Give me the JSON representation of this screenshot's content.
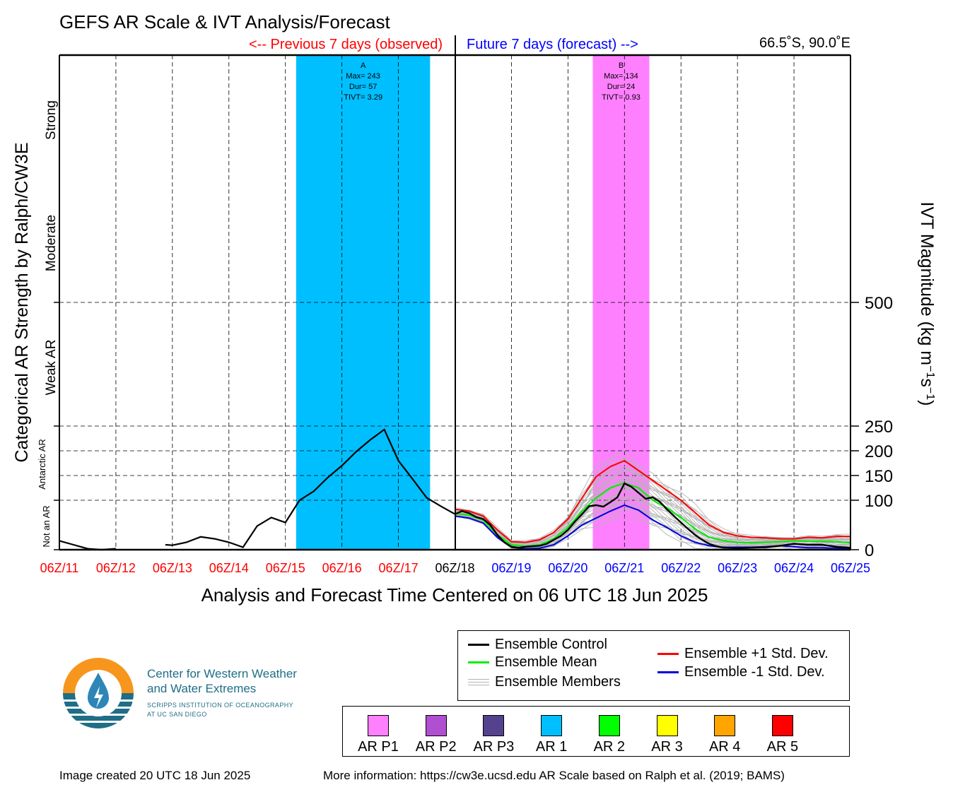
{
  "title": "GEFS AR Scale & IVT Analysis/Forecast",
  "past_label": "<-- Previous 7 days (observed)",
  "future_label": "Future 7 days (forecast) -->",
  "location": "66.5˚S, 90.0˚E",
  "y_left_label": "Categorical AR Strength by Ralph/CW3E",
  "categories_left": [
    "Not an AR",
    "Antarctic AR",
    "Weak AR",
    "Moderate",
    "Strong"
  ],
  "y_right_label_main": "IVT Magnitude (kg m",
  "y_right_label_sup1": "−1",
  "y_right_label_mid": "s",
  "y_right_label_sup2": "−1",
  "y_right_label_end": ")",
  "x_label": "Analysis and Forecast Time Centered on 06 UTC 18 Jun 2025",
  "colors": {
    "past_tick": "#ff0000",
    "now_tick": "#000000",
    "future_tick": "#0000ff",
    "past_label": "#ff0000",
    "future_label": "#0000ff",
    "ar1": "#00bfff",
    "arp1": "#ff80ff",
    "control": "#000000",
    "mean": "#00ee00",
    "plus": "#ff0000",
    "minus": "#0000dd",
    "members": "#b4b4b4"
  },
  "chart_data": {
    "type": "line",
    "x_unit": "days from 06Z/11 Jun 2025",
    "x_ticks": [
      "06Z/11",
      "06Z/12",
      "06Z/13",
      "06Z/14",
      "06Z/15",
      "06Z/16",
      "06Z/17",
      "06Z/18",
      "06Z/19",
      "06Z/20",
      "06Z/21",
      "06Z/22",
      "06Z/23",
      "06Z/24",
      "06Z/25"
    ],
    "xlim": [
      0,
      14
    ],
    "y_ticks": [
      0,
      100,
      150,
      200,
      250,
      500
    ],
    "ylim": [
      0,
      1000
    ],
    "ar_events": [
      {
        "label": "A",
        "max": "Max= 243",
        "dur": "Dur= 57",
        "tivt": "TIVT= 3.29",
        "start": 4.19,
        "end": 6.56,
        "color_key": "ar1"
      },
      {
        "label": "B",
        "max": "Max= 134",
        "dur": "Dur= 24",
        "tivt": "TIVT= 0.93",
        "start": 9.44,
        "end": 10.44,
        "color_key": "arp1"
      }
    ],
    "observed": [
      [
        [
          0,
          18
        ],
        [
          0.25,
          10
        ],
        [
          0.5,
          2
        ],
        [
          0.75,
          0
        ],
        [
          1,
          2
        ]
      ],
      [
        [
          1.875,
          10
        ],
        [
          2,
          9
        ],
        [
          2.25,
          15
        ],
        [
          2.5,
          26
        ],
        [
          2.75,
          22
        ],
        [
          3,
          15
        ],
        [
          3.25,
          5
        ],
        [
          3.5,
          48
        ],
        [
          3.75,
          65
        ],
        [
          4,
          55
        ],
        [
          4.25,
          100
        ],
        [
          4.5,
          118
        ],
        [
          4.75,
          146
        ],
        [
          5,
          170
        ],
        [
          5.25,
          198
        ],
        [
          5.5,
          222
        ],
        [
          5.75,
          243
        ],
        [
          6,
          180
        ],
        [
          6.25,
          143
        ],
        [
          6.5,
          105
        ],
        [
          6.75,
          88
        ],
        [
          7,
          72
        ]
      ]
    ],
    "series": [
      {
        "name": "Ensemble Control",
        "color_key": "control",
        "points": [
          [
            7,
            72
          ],
          [
            7.125,
            78
          ],
          [
            7.25,
            74
          ],
          [
            7.375,
            66
          ],
          [
            7.5,
            62
          ],
          [
            7.625,
            50
          ],
          [
            7.75,
            30
          ],
          [
            7.875,
            15
          ],
          [
            8,
            6
          ],
          [
            8.125,
            4
          ],
          [
            8.25,
            6
          ],
          [
            8.375,
            7
          ],
          [
            8.5,
            8
          ],
          [
            8.625,
            12
          ],
          [
            8.75,
            20
          ],
          [
            8.875,
            28
          ],
          [
            9,
            40
          ],
          [
            9.125,
            57
          ],
          [
            9.25,
            72
          ],
          [
            9.375,
            88
          ],
          [
            9.5,
            90
          ],
          [
            9.625,
            87
          ],
          [
            9.75,
            96
          ],
          [
            9.875,
            106
          ],
          [
            10,
            134
          ],
          [
            10.125,
            127
          ],
          [
            10.25,
            115
          ],
          [
            10.375,
            103
          ],
          [
            10.5,
            106
          ],
          [
            10.625,
            97
          ],
          [
            10.75,
            82
          ],
          [
            10.875,
            68
          ],
          [
            11,
            55
          ],
          [
            11.125,
            42
          ],
          [
            11.25,
            30
          ],
          [
            11.375,
            20
          ],
          [
            11.5,
            12
          ],
          [
            11.625,
            7
          ],
          [
            11.75,
            4
          ],
          [
            12,
            3
          ],
          [
            12.25,
            4
          ],
          [
            12.5,
            5
          ],
          [
            12.75,
            8
          ],
          [
            13,
            12
          ],
          [
            13.25,
            10
          ],
          [
            13.5,
            10
          ],
          [
            13.75,
            6
          ],
          [
            14,
            4
          ]
        ]
      },
      {
        "name": "Ensemble Mean",
        "color_key": "mean",
        "points": [
          [
            7,
            73
          ],
          [
            7.25,
            70
          ],
          [
            7.5,
            60
          ],
          [
            7.75,
            30
          ],
          [
            8,
            10
          ],
          [
            8.25,
            7
          ],
          [
            8.5,
            10
          ],
          [
            8.75,
            22
          ],
          [
            9,
            45
          ],
          [
            9.25,
            78
          ],
          [
            9.5,
            105
          ],
          [
            9.75,
            125
          ],
          [
            10,
            135
          ],
          [
            10.25,
            125
          ],
          [
            10.5,
            100
          ],
          [
            10.75,
            85
          ],
          [
            11,
            65
          ],
          [
            11.25,
            42
          ],
          [
            11.5,
            25
          ],
          [
            11.75,
            18
          ],
          [
            12,
            15
          ],
          [
            12.25,
            14
          ],
          [
            12.5,
            15
          ],
          [
            12.75,
            16
          ],
          [
            13,
            18
          ],
          [
            13.25,
            17
          ],
          [
            13.5,
            17
          ],
          [
            13.75,
            16
          ],
          [
            14,
            14
          ]
        ]
      },
      {
        "name": "Ensemble +1 Std. Dev.",
        "color_key": "plus",
        "points": [
          [
            7,
            82
          ],
          [
            7.25,
            78
          ],
          [
            7.5,
            68
          ],
          [
            7.75,
            40
          ],
          [
            8,
            16
          ],
          [
            8.25,
            15
          ],
          [
            8.5,
            20
          ],
          [
            8.75,
            35
          ],
          [
            9,
            62
          ],
          [
            9.25,
            105
          ],
          [
            9.5,
            148
          ],
          [
            9.75,
            168
          ],
          [
            10,
            180
          ],
          [
            10.25,
            160
          ],
          [
            10.5,
            140
          ],
          [
            10.75,
            120
          ],
          [
            11,
            100
          ],
          [
            11.25,
            75
          ],
          [
            11.5,
            50
          ],
          [
            11.75,
            35
          ],
          [
            12,
            28
          ],
          [
            12.25,
            25
          ],
          [
            12.5,
            24
          ],
          [
            12.75,
            22
          ],
          [
            13,
            22
          ],
          [
            13.25,
            25
          ],
          [
            13.5,
            24
          ],
          [
            13.75,
            27
          ],
          [
            14,
            27
          ]
        ]
      },
      {
        "name": "Ensemble -1 Std. Dev.",
        "color_key": "minus",
        "points": [
          [
            7,
            68
          ],
          [
            7.25,
            64
          ],
          [
            7.5,
            54
          ],
          [
            7.75,
            25
          ],
          [
            8,
            5
          ],
          [
            8.25,
            2
          ],
          [
            8.5,
            3
          ],
          [
            8.75,
            10
          ],
          [
            9,
            28
          ],
          [
            9.25,
            50
          ],
          [
            9.5,
            64
          ],
          [
            9.75,
            78
          ],
          [
            10,
            90
          ],
          [
            10.25,
            80
          ],
          [
            10.5,
            60
          ],
          [
            10.75,
            45
          ],
          [
            11,
            28
          ],
          [
            11.25,
            15
          ],
          [
            11.5,
            8
          ],
          [
            11.75,
            5
          ],
          [
            12,
            5
          ],
          [
            12.25,
            5
          ],
          [
            12.5,
            6
          ],
          [
            12.75,
            8
          ],
          [
            13,
            6
          ],
          [
            13.25,
            4
          ],
          [
            13.5,
            4
          ],
          [
            13.75,
            3
          ],
          [
            14,
            2
          ]
        ]
      }
    ],
    "members_label": "Ensemble Members",
    "members_count": 30,
    "grid": true
  },
  "legend": {
    "control": "Ensemble Control",
    "mean": "Ensemble Mean",
    "members": "Ensemble Members",
    "plus": "Ensemble +1 Std. Dev.",
    "minus": "Ensemble -1 Std. Dev."
  },
  "ar_categories": [
    {
      "label": "AR P1",
      "color": "#ff80ff"
    },
    {
      "label": "AR P2",
      "color": "#b050d0"
    },
    {
      "label": "AR P3",
      "color": "#54428e"
    },
    {
      "label": "AR 1",
      "color": "#00bfff"
    },
    {
      "label": "AR 2",
      "color": "#00ff00"
    },
    {
      "label": "AR 3",
      "color": "#ffff00"
    },
    {
      "label": "AR 4",
      "color": "#ffa500"
    },
    {
      "label": "AR 5",
      "color": "#ff0000"
    }
  ],
  "logo": {
    "line1": "Center for Western Weather",
    "line2": "and Water Extremes",
    "line3": "SCRIPPS INSTITUTION OF OCEANOGRAPHY",
    "line4": "AT UC SAN DIEGO"
  },
  "footer": {
    "created": "Image created 20 UTC 18 Jun 2025",
    "info": "More information: https://cw3e.ucsd.edu AR Scale based on Ralph et al. (2019; BAMS)"
  }
}
